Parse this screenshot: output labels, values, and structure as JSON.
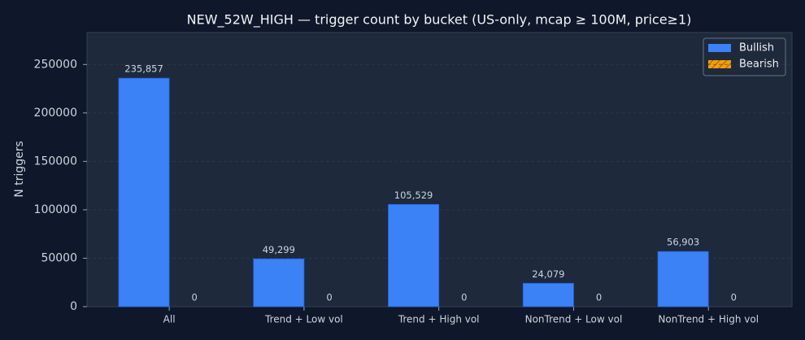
{
  "chart_data": {
    "type": "bar",
    "title": "NEW_52W_HIGH — trigger count by bucket (US-only, mcap ≥ 100M, price≥1)",
    "y_label": "N triggers",
    "categories": [
      "All",
      "Trend + Low vol",
      "Trend + High vol",
      "NonTrend + Low vol",
      "NonTrend + High vol"
    ],
    "series": [
      {
        "name": "Bullish",
        "color": "#3b82f6",
        "values": [
          235857,
          49299,
          105529,
          24079,
          56903
        ],
        "value_labels": [
          "235,857",
          "49,299",
          "105,529",
          "24,079",
          "56,903"
        ]
      },
      {
        "name": "Bearish",
        "color": "#f59e0b",
        "values": [
          0,
          0,
          0,
          0,
          0
        ]
      }
    ],
    "ylim": [
      0,
      283000
    ],
    "yticks": [
      0,
      50000,
      100000,
      150000,
      200000,
      250000
    ],
    "grid": true,
    "legend": "upper right"
  }
}
